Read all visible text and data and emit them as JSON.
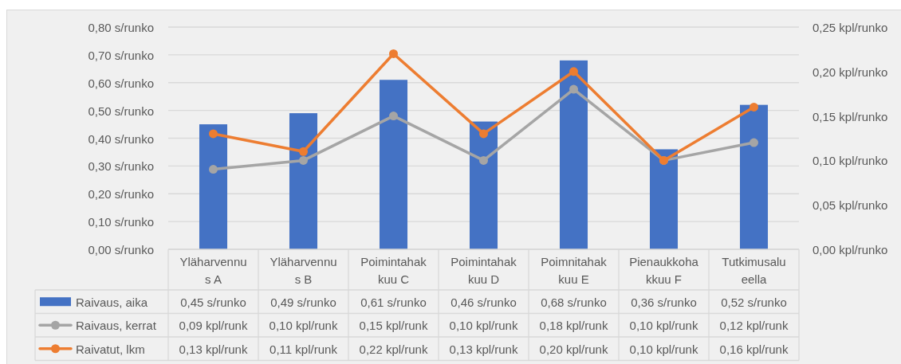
{
  "chart_data": {
    "type": "bar",
    "categories": [
      "Yläharvennus A",
      "Yläharvennus B",
      "Poimintahakkuu C",
      "Poimintahakkuu D",
      "Poimnitahakkuu E",
      "Pienaukkohakkuu F",
      "Tutkimusalueella"
    ],
    "series": [
      {
        "name": "Raivaus, aika",
        "color": "#4472c4",
        "values": [
          0.45,
          0.49,
          0.61,
          0.46,
          0.68,
          0.36,
          0.52
        ],
        "value_labels": [
          "0,45 s/runko",
          "0,49 s/runko",
          "0,61 s/runko",
          "0,46 s/runko",
          "0,68 s/runko",
          "0,36 s/runko",
          "0,52 s/runko"
        ]
      },
      {
        "name": "Raivaus, kerrat",
        "type": "line",
        "axis": "y2",
        "color": "#a5a5a5",
        "values": [
          0.09,
          0.1,
          0.15,
          0.1,
          0.18,
          0.1,
          0.12
        ],
        "value_labels": [
          "0,09 kpl/runk",
          "0,10 kpl/runk",
          "0,15 kpl/runk",
          "0,10 kpl/runk",
          "0,18 kpl/runk",
          "0,10 kpl/runk",
          "0,12 kpl/runk"
        ]
      },
      {
        "name": "Raivatut, lkm",
        "type": "line",
        "axis": "y2",
        "color": "#ed7d31",
        "values": [
          0.13,
          0.11,
          0.22,
          0.13,
          0.2,
          0.1,
          0.16
        ],
        "value_labels": [
          "0,13 kpl/runk",
          "0,11 kpl/runk",
          "0,22 kpl/runk",
          "0,13 kpl/runk",
          "0,20 kpl/runk",
          "0,10 kpl/runk",
          "0,16 kpl/runk"
        ]
      }
    ],
    "ylim": [
      0,
      0.8
    ],
    "yticks": [
      {
        "value": 0,
        "label": "0,00 s/runko"
      },
      {
        "value": 0.1,
        "label": "0,10 s/runko"
      },
      {
        "value": 0.2,
        "label": "0,20 s/runko"
      },
      {
        "value": 0.3,
        "label": "0,30 s/runko"
      },
      {
        "value": 0.4,
        "label": "0,40 s/runko"
      },
      {
        "value": 0.5,
        "label": "0,50 s/runko"
      },
      {
        "value": 0.6,
        "label": "0,60 s/runko"
      },
      {
        "value": 0.7,
        "label": "0,70 s/runko"
      },
      {
        "value": 0.8,
        "label": "0,80 s/runko"
      }
    ],
    "y2lim": [
      0,
      0.25
    ],
    "y2ticks": [
      {
        "value": 0,
        "label": "0,00 kpl/runko"
      },
      {
        "value": 0.05,
        "label": "0,05 kpl/runko"
      },
      {
        "value": 0.1,
        "label": "0,10 kpl/runko"
      },
      {
        "value": 0.15,
        "label": "0,15 kpl/runko"
      },
      {
        "value": 0.2,
        "label": "0,20 kpl/runko"
      },
      {
        "value": 0.25,
        "label": "0,25 kpl/runko"
      }
    ],
    "grid": "y",
    "legend": "bottom",
    "marker": "circle"
  }
}
